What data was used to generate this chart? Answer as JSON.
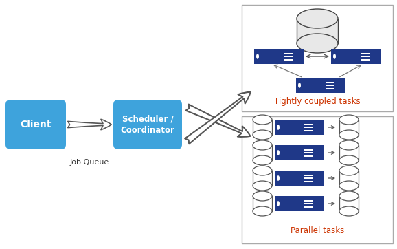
{
  "bg_color": "#ffffff",
  "blue_dark": "#1f3888",
  "blue_light": "#3ea3dc",
  "box_border": "#aaaaaa",
  "client_label": "Client",
  "scheduler_label": "Scheduler /\nCoordinator",
  "job_queue_label": "Job Queue",
  "parallel_label": "Parallel tasks",
  "tightly_label": "Tightly coupled tasks",
  "arrow_color": "#777777",
  "text_color_label": "#cc3300"
}
